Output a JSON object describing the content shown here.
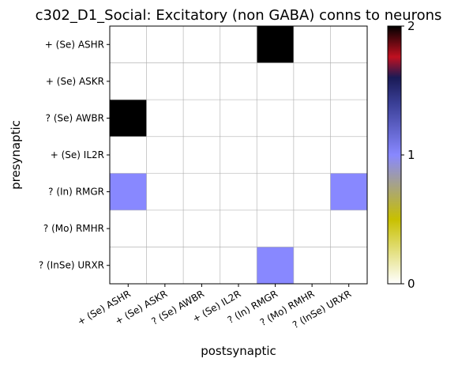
{
  "chart_data": {
    "type": "heatmap",
    "title": "c302_D1_Social: Excitatory (non GABA) conns to neurons",
    "xlabel": "postsynaptic",
    "ylabel": "presynaptic",
    "x_labels": [
      "+ (Se) ASHR",
      "+ (Se) ASKR",
      "? (Se) AWBR",
      "+ (Se) IL2R",
      "? (In) RMGR",
      "? (Mo) RMHR",
      "? (InSe) URXR"
    ],
    "y_labels": [
      "+ (Se) ASHR",
      "+ (Se) ASKR",
      "? (Se) AWBR",
      "+ (Se) IL2R",
      "? (In) RMGR",
      "? (Mo) RMHR",
      "? (InSe) URXR"
    ],
    "values": [
      [
        0,
        0,
        0,
        0,
        2,
        0,
        0
      ],
      [
        0,
        0,
        0,
        0,
        0,
        0,
        0
      ],
      [
        2,
        0,
        0,
        0,
        0,
        0,
        0
      ],
      [
        0,
        0,
        0,
        0,
        0,
        0,
        0
      ],
      [
        1,
        0,
        0,
        0,
        0,
        0,
        1
      ],
      [
        0,
        0,
        0,
        0,
        0,
        0,
        0
      ],
      [
        0,
        0,
        0,
        0,
        1,
        0,
        0
      ]
    ],
    "value_range": [
      0,
      2
    ],
    "colorbar": {
      "ticks": [
        "0",
        "1",
        "2"
      ],
      "colormap": "gist_stern_r",
      "stops": [
        "#ffffff",
        "#c8c000",
        "#8888ff",
        "#3a3f96",
        "#1a1a55",
        "#c01020",
        "#000000"
      ]
    },
    "grid": true
  }
}
